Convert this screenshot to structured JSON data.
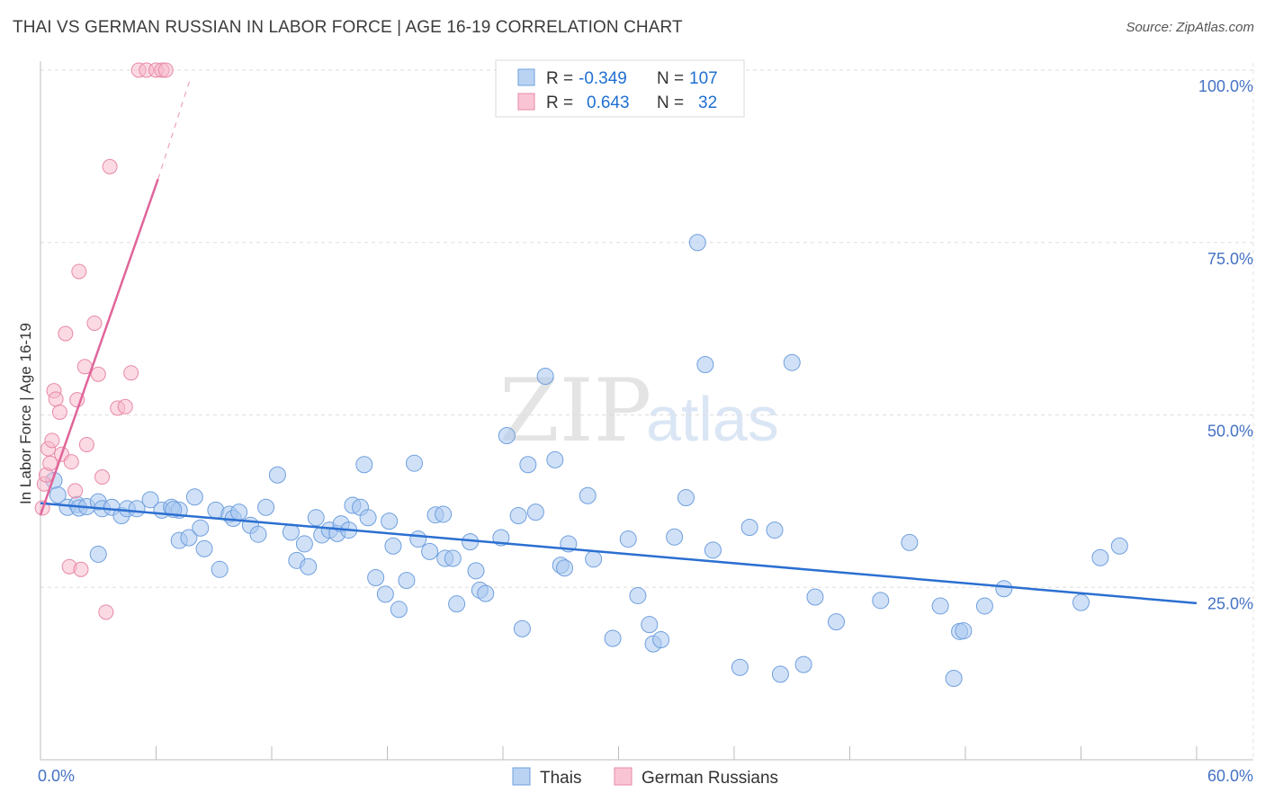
{
  "title": "THAI VS GERMAN RUSSIAN IN LABOR FORCE | AGE 16-19 CORRELATION CHART",
  "source": "Source: ZipAtlas.com",
  "watermark": {
    "zip": "ZIP",
    "atlas": "atlas"
  },
  "legend_box": {
    "rows": [
      {
        "r_label": "R =",
        "r_value": "-0.349",
        "n_label": "N =",
        "n_value": "107",
        "color": "#a9c8f0",
        "stroke": "#6f9fde"
      },
      {
        "r_label": "R =",
        "r_value": "0.643",
        "n_label": "N =",
        "n_value": "32",
        "color": "#f7b6c9",
        "stroke": "#e889a6"
      }
    ]
  },
  "bottom_legend": [
    {
      "label": "Thais",
      "color": "#a9c8f0",
      "stroke": "#6f9fde"
    },
    {
      "label": "German Russians",
      "color": "#f7b6c9",
      "stroke": "#e889a6"
    }
  ],
  "chart_data": {
    "type": "scatter",
    "xlabel": "",
    "ylabel": "In Labor Force | Age 16-19",
    "xlim": [
      0,
      60
    ],
    "ylim": [
      0,
      100
    ],
    "x_tick_labels": [
      "0.0%",
      "60.0%"
    ],
    "y_tick_labels": [
      "100.0%",
      "75.0%",
      "50.0%",
      "25.0%"
    ],
    "y_ticks": [
      100,
      75,
      50,
      25
    ],
    "grid": true,
    "colors": {
      "thais": "#a9c8f0",
      "thais_line": "#2b6fd1",
      "german_russians": "#f7b6c9",
      "german_russians_line": "#e0659a"
    },
    "series": [
      {
        "name": "Thais",
        "trend": {
          "x0": 0,
          "y0": 37.2,
          "x1": 60,
          "y1": 22.7
        },
        "points": [
          [
            0.7,
            40.5
          ],
          [
            0.9,
            38.4
          ],
          [
            1.4,
            36.6
          ],
          [
            1.9,
            37.0
          ],
          [
            2.0,
            36.5
          ],
          [
            2.4,
            36.7
          ],
          [
            3.0,
            37.4
          ],
          [
            3.2,
            36.4
          ],
          [
            3.7,
            36.6
          ],
          [
            4.2,
            35.4
          ],
          [
            4.5,
            36.4
          ],
          [
            5.0,
            36.4
          ],
          [
            5.7,
            37.7
          ],
          [
            6.3,
            36.2
          ],
          [
            6.8,
            36.6
          ],
          [
            7.2,
            36.2
          ],
          [
            6.9,
            36.3
          ],
          [
            3.0,
            29.8
          ],
          [
            7.2,
            31.8
          ],
          [
            7.7,
            32.2
          ],
          [
            8.0,
            38.1
          ],
          [
            8.3,
            33.6
          ],
          [
            8.5,
            30.6
          ],
          [
            9.1,
            36.2
          ],
          [
            9.3,
            27.6
          ],
          [
            9.8,
            35.6
          ],
          [
            10.0,
            35.0
          ],
          [
            10.3,
            35.9
          ],
          [
            10.9,
            34.0
          ],
          [
            11.3,
            32.7
          ],
          [
            11.7,
            36.6
          ],
          [
            12.3,
            41.3
          ],
          [
            13.0,
            33.0
          ],
          [
            13.3,
            28.9
          ],
          [
            13.7,
            31.3
          ],
          [
            13.9,
            28.0
          ],
          [
            14.3,
            35.1
          ],
          [
            14.6,
            32.6
          ],
          [
            15.0,
            33.3
          ],
          [
            15.4,
            32.8
          ],
          [
            15.6,
            34.2
          ],
          [
            16.0,
            33.3
          ],
          [
            16.2,
            36.9
          ],
          [
            16.6,
            36.6
          ],
          [
            16.8,
            42.8
          ],
          [
            17.0,
            35.1
          ],
          [
            17.4,
            26.4
          ],
          [
            17.9,
            24.0
          ],
          [
            18.1,
            34.6
          ],
          [
            18.3,
            31.0
          ],
          [
            18.6,
            21.8
          ],
          [
            19.0,
            26.0
          ],
          [
            19.4,
            43.0
          ],
          [
            19.6,
            32.0
          ],
          [
            20.2,
            30.2
          ],
          [
            20.5,
            35.5
          ],
          [
            20.9,
            35.6
          ],
          [
            21.0,
            29.2
          ],
          [
            21.4,
            29.2
          ],
          [
            21.6,
            22.6
          ],
          [
            22.3,
            31.6
          ],
          [
            22.6,
            27.4
          ],
          [
            22.8,
            24.6
          ],
          [
            23.1,
            24.1
          ],
          [
            23.9,
            32.2
          ],
          [
            24.2,
            47.0
          ],
          [
            24.8,
            35.4
          ],
          [
            25.0,
            19.0
          ],
          [
            25.3,
            42.8
          ],
          [
            25.7,
            35.9
          ],
          [
            26.2,
            55.6
          ],
          [
            26.7,
            43.5
          ],
          [
            27.0,
            28.2
          ],
          [
            27.2,
            27.8
          ],
          [
            27.4,
            31.3
          ],
          [
            28.4,
            38.3
          ],
          [
            28.7,
            29.1
          ],
          [
            29.7,
            17.6
          ],
          [
            30.5,
            32.0
          ],
          [
            31.0,
            23.8
          ],
          [
            31.6,
            19.6
          ],
          [
            31.8,
            16.8
          ],
          [
            32.2,
            17.4
          ],
          [
            32.9,
            32.3
          ],
          [
            33.5,
            38.0
          ],
          [
            34.1,
            75.0
          ],
          [
            34.5,
            57.3
          ],
          [
            34.9,
            30.4
          ],
          [
            36.3,
            13.4
          ],
          [
            36.8,
            33.7
          ],
          [
            38.1,
            33.3
          ],
          [
            38.4,
            12.4
          ],
          [
            39.0,
            57.6
          ],
          [
            39.6,
            13.8
          ],
          [
            40.2,
            23.6
          ],
          [
            41.3,
            20.0
          ],
          [
            43.6,
            23.1
          ],
          [
            45.1,
            31.5
          ],
          [
            46.7,
            22.3
          ],
          [
            47.4,
            11.8
          ],
          [
            47.7,
            18.6
          ],
          [
            47.9,
            18.7
          ],
          [
            49.0,
            22.3
          ],
          [
            50.0,
            24.8
          ],
          [
            54.0,
            22.8
          ],
          [
            55.0,
            29.3
          ],
          [
            56.0,
            31.0
          ]
        ]
      },
      {
        "name": "German Russians",
        "trend": {
          "x0": 0,
          "y0": 35.5,
          "x1": 6.1,
          "y1": 84.2,
          "x_ext": 7.8,
          "y_ext": 99.0
        },
        "points": [
          [
            0.1,
            36.5
          ],
          [
            0.2,
            40.0
          ],
          [
            0.3,
            41.3
          ],
          [
            0.4,
            45.1
          ],
          [
            0.5,
            43.0
          ],
          [
            0.6,
            46.3
          ],
          [
            0.7,
            53.5
          ],
          [
            0.8,
            52.3
          ],
          [
            1.0,
            50.4
          ],
          [
            1.1,
            44.3
          ],
          [
            1.3,
            61.8
          ],
          [
            1.5,
            28.0
          ],
          [
            1.6,
            43.2
          ],
          [
            1.8,
            39.0
          ],
          [
            1.9,
            52.2
          ],
          [
            2.1,
            27.6
          ],
          [
            2.0,
            70.8
          ],
          [
            2.3,
            57.0
          ],
          [
            2.4,
            45.7
          ],
          [
            2.8,
            63.3
          ],
          [
            3.0,
            55.9
          ],
          [
            3.2,
            41.0
          ],
          [
            3.4,
            21.4
          ],
          [
            3.6,
            86.0
          ],
          [
            4.0,
            51.0
          ],
          [
            4.4,
            51.2
          ],
          [
            4.7,
            56.1
          ],
          [
            5.1,
            100
          ],
          [
            5.5,
            100
          ],
          [
            6.0,
            100
          ],
          [
            6.3,
            100
          ],
          [
            6.5,
            100
          ]
        ]
      }
    ]
  }
}
